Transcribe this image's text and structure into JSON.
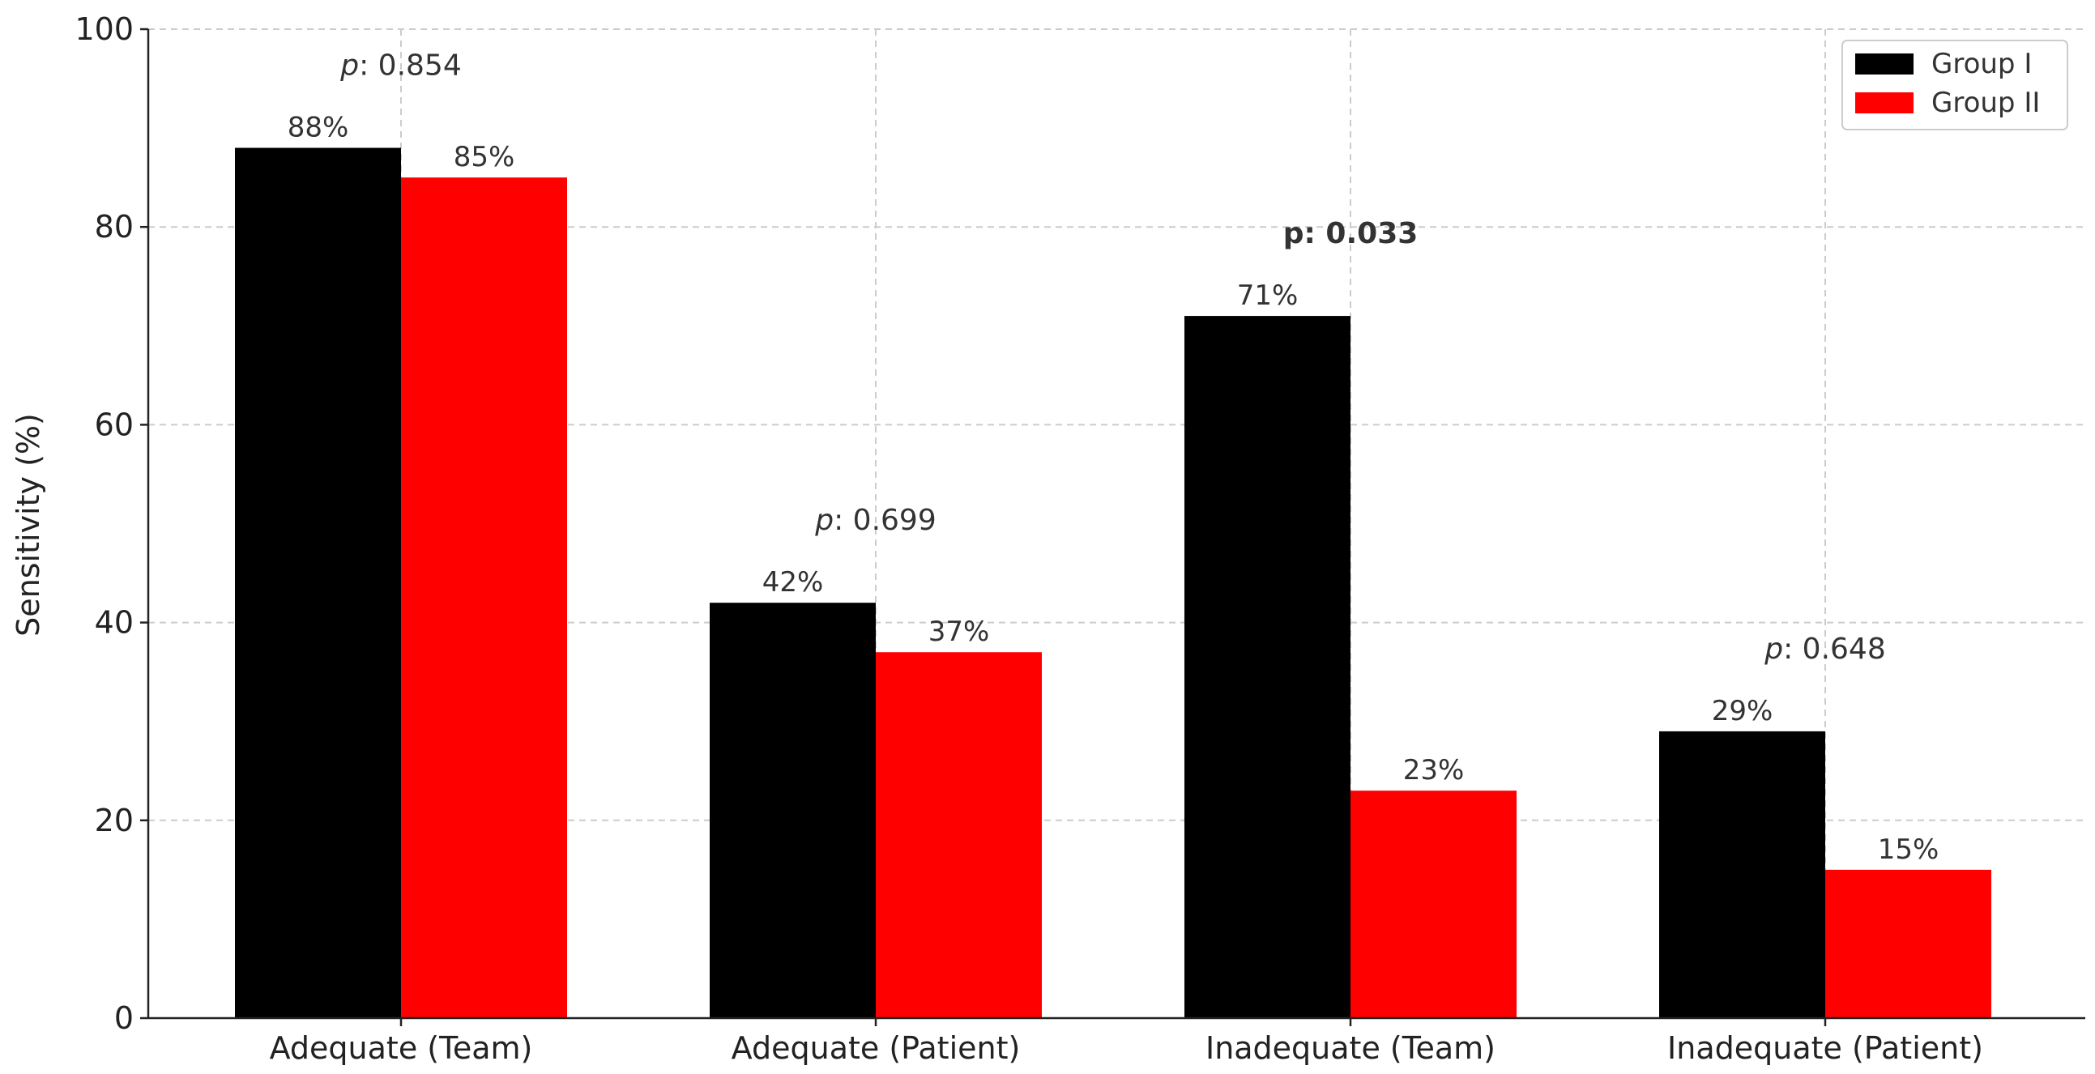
{
  "chart_data": {
    "type": "bar",
    "categories": [
      "Adequate (Team)",
      "Adequate (Patient)",
      "Inadequate (Team)",
      "Inadequate (Patient)"
    ],
    "series": [
      {
        "name": "Group I",
        "values": [
          88,
          42,
          71,
          29
        ],
        "color": "#000000"
      },
      {
        "name": "Group II",
        "values": [
          85,
          37,
          23,
          15
        ],
        "color": "#ff0000"
      }
    ],
    "data_labels": [
      [
        "88%",
        "42%",
        "71%",
        "29%"
      ],
      [
        "85%",
        "37%",
        "23%",
        "15%"
      ]
    ],
    "annotations": [
      {
        "category": "Adequate (Team)",
        "prefix": "p",
        "text": ": 0.854",
        "bold": false
      },
      {
        "category": "Adequate (Patient)",
        "prefix": "p",
        "text": ": 0.699",
        "bold": false
      },
      {
        "category": "Inadequate (Team)",
        "prefix": "p",
        "text": ": 0.033",
        "bold": true
      },
      {
        "category": "Inadequate (Patient)",
        "prefix": "p",
        "text": ": 0.648",
        "bold": false
      }
    ],
    "title": "",
    "xlabel": "",
    "ylabel": "Sensitivity (%)",
    "ylim": [
      0,
      100
    ],
    "yticks": [
      0,
      20,
      40,
      60,
      80,
      100
    ],
    "grid": true,
    "legend_position": "top-right"
  }
}
